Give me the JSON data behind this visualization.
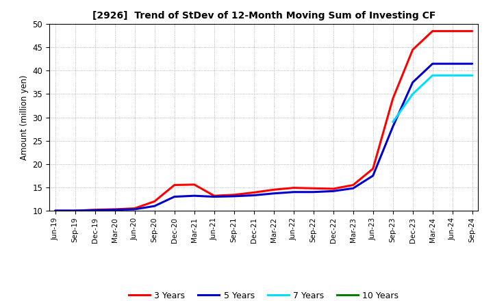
{
  "title": "[2926]  Trend of StDev of 12-Month Moving Sum of Investing CF",
  "ylabel": "Amount (million yen)",
  "ylim": [
    10,
    50
  ],
  "yticks": [
    10,
    15,
    20,
    25,
    30,
    35,
    40,
    45,
    50
  ],
  "background_color": "#ffffff",
  "grid_color": "#999999",
  "x_labels": [
    "Jun-19",
    "Sep-19",
    "Dec-19",
    "Mar-20",
    "Jun-20",
    "Sep-20",
    "Dec-20",
    "Mar-21",
    "Jun-21",
    "Sep-21",
    "Dec-21",
    "Mar-22",
    "Jun-22",
    "Sep-22",
    "Dec-22",
    "Mar-23",
    "Jun-23",
    "Sep-23",
    "Dec-23",
    "Mar-24",
    "Jun-24",
    "Sep-24"
  ],
  "series": {
    "3 Years": {
      "color": "#ff0000",
      "data_x": [
        0,
        1,
        2,
        3,
        4,
        5,
        6,
        7,
        8,
        9,
        10,
        11,
        12,
        13,
        14,
        15,
        16,
        17,
        18,
        19,
        20,
        21
      ],
      "data_y": [
        10.0,
        10.0,
        10.2,
        10.3,
        10.5,
        12.0,
        15.5,
        15.6,
        13.2,
        13.4,
        13.9,
        14.5,
        14.9,
        14.8,
        14.7,
        15.5,
        19.0,
        34.0,
        44.5,
        48.5,
        48.5,
        48.5
      ]
    },
    "5 Years": {
      "color": "#0000cc",
      "data_x": [
        0,
        1,
        2,
        3,
        4,
        5,
        6,
        7,
        8,
        9,
        10,
        11,
        12,
        13,
        14,
        15,
        16,
        17,
        18,
        19,
        20,
        21
      ],
      "data_y": [
        10.0,
        10.0,
        10.1,
        10.2,
        10.3,
        11.0,
        13.0,
        13.2,
        13.0,
        13.1,
        13.3,
        13.7,
        14.0,
        14.0,
        14.2,
        14.8,
        17.5,
        28.0,
        37.5,
        41.5,
        41.5,
        41.5
      ]
    },
    "7 Years": {
      "color": "#00ddff",
      "data_x": [
        16,
        17,
        18,
        19,
        20,
        21
      ],
      "data_y": [
        null,
        29.0,
        35.0,
        39.0,
        39.0,
        39.0
      ]
    },
    "10 Years": {
      "color": "#008000",
      "data_x": [],
      "data_y": []
    }
  },
  "legend_entries": [
    "3 Years",
    "5 Years",
    "7 Years",
    "10 Years"
  ],
  "legend_colors": [
    "#ff0000",
    "#0000cc",
    "#00ddff",
    "#008000"
  ]
}
